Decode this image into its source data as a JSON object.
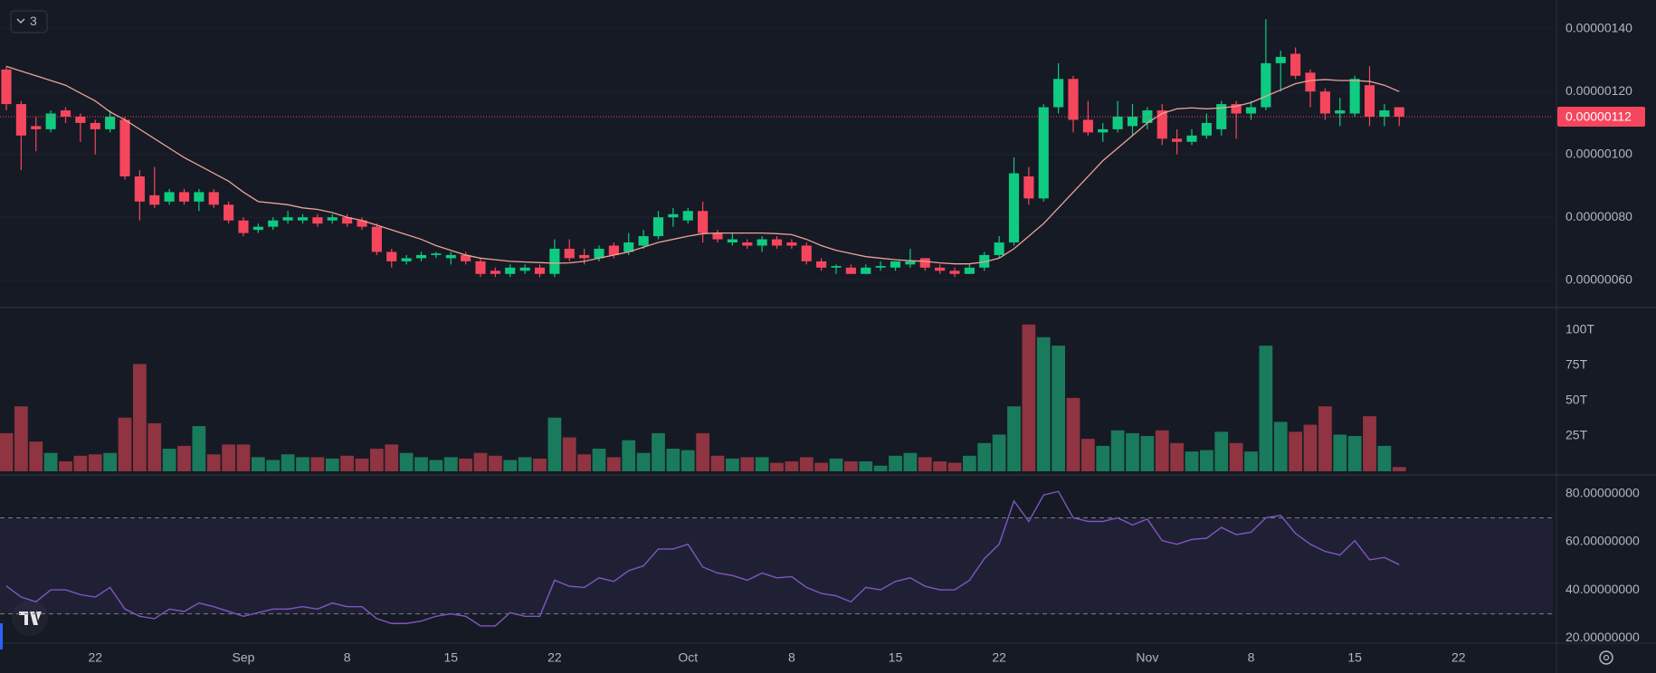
{
  "chart_data": [
    {
      "type": "candlestick",
      "collapsed_indicators": 3,
      "categories": [
        null,
        null,
        null,
        null,
        null,
        null,
        "22",
        null,
        null,
        null,
        null,
        null,
        null,
        null,
        null,
        null,
        "Sep",
        null,
        null,
        null,
        null,
        null,
        null,
        "8",
        null,
        null,
        null,
        null,
        null,
        null,
        "15",
        null,
        null,
        null,
        null,
        null,
        null,
        "22",
        null,
        null,
        null,
        null,
        null,
        null,
        null,
        null,
        "Oct",
        null,
        null,
        null,
        null,
        null,
        null,
        "8",
        null,
        null,
        null,
        null,
        null,
        null,
        "15",
        null,
        null,
        null,
        null,
        null,
        null,
        "22",
        null,
        null,
        null,
        null,
        null,
        null,
        null,
        null,
        null,
        "Nov",
        null,
        null,
        null,
        null,
        null,
        null,
        "8",
        null,
        null,
        null,
        null,
        null,
        null,
        "15",
        null,
        null,
        null,
        null,
        null,
        null,
        "22"
      ],
      "open": [
        1.27e-06,
        1.16e-06,
        1.09e-06,
        1.08e-06,
        1.14e-06,
        1.12e-06,
        1.1e-06,
        1.08e-06,
        1.11e-06,
        9.3e-07,
        8.7e-07,
        8.5e-07,
        8.8e-07,
        8.5e-07,
        8.8e-07,
        8.4e-07,
        7.9e-07,
        7.6e-07,
        7.7e-07,
        7.9e-07,
        7.9e-07,
        8e-07,
        7.9e-07,
        8e-07,
        7.9e-07,
        7.7e-07,
        6.9e-07,
        6.6e-07,
        6.7e-07,
        6.8e-07,
        6.7e-07,
        6.8e-07,
        6.6e-07,
        6.3e-07,
        6.2e-07,
        6.3e-07,
        6.4e-07,
        6.2e-07,
        7e-07,
        6.8e-07,
        6.7e-07,
        7.1e-07,
        6.9e-07,
        7.1e-07,
        7.4e-07,
        8e-07,
        7.9e-07,
        8.2e-07,
        7.5e-07,
        7.2e-07,
        7.2e-07,
        7.1e-07,
        7.3e-07,
        7.2e-07,
        7.1e-07,
        6.6e-07,
        6.4e-07,
        6.4e-07,
        6.2e-07,
        6.4e-07,
        6.4e-07,
        6.5e-07,
        6.7e-07,
        6.4e-07,
        6.3e-07,
        6.2e-07,
        6.4e-07,
        6.8e-07,
        7.2e-07,
        9.3e-07,
        8.6e-07,
        1.15e-06,
        1.24e-06,
        1.11e-06,
        1.07e-06,
        1.08e-06,
        1.09e-06,
        1.1e-06,
        1.14e-06,
        1.05e-06,
        1.04e-06,
        1.06e-06,
        1.08e-06,
        1.16e-06,
        1.13e-06,
        1.15e-06,
        1.29e-06,
        1.32e-06,
        1.26e-06,
        1.2e-06,
        1.13e-06,
        1.13e-06,
        1.22e-06,
        1.12e-06,
        1.15e-06,
        null,
        null,
        null,
        null
      ],
      "high": [
        1.28e-06,
        1.17e-06,
        1.12e-06,
        1.14e-06,
        1.15e-06,
        1.13e-06,
        1.11e-06,
        1.14e-06,
        1.12e-06,
        9.5e-07,
        9.6e-07,
        8.9e-07,
        8.9e-07,
        8.9e-07,
        8.9e-07,
        8.5e-07,
        8e-07,
        7.8e-07,
        8e-07,
        8.2e-07,
        8.1e-07,
        8.1e-07,
        8.1e-07,
        8.1e-07,
        8e-07,
        7.8e-07,
        7e-07,
        6.8e-07,
        6.9e-07,
        6.9e-07,
        6.9e-07,
        6.9e-07,
        6.7e-07,
        6.4e-07,
        6.5e-07,
        6.5e-07,
        6.5e-07,
        7.3e-07,
        7.3e-07,
        7e-07,
        7.1e-07,
        7.2e-07,
        7.5e-07,
        7.6e-07,
        8.2e-07,
        8.3e-07,
        8.3e-07,
        8.5e-07,
        7.6e-07,
        7.5e-07,
        7.3e-07,
        7.4e-07,
        7.4e-07,
        7.3e-07,
        7.2e-07,
        6.7e-07,
        6.5e-07,
        6.5e-07,
        6.5e-07,
        6.6e-07,
        6.6e-07,
        7e-07,
        6.7e-07,
        6.5e-07,
        6.4e-07,
        6.5e-07,
        6.9e-07,
        7.4e-07,
        9.9e-07,
        9.6e-07,
        1.16e-06,
        1.29e-06,
        1.25e-06,
        1.17e-06,
        1.1e-06,
        1.17e-06,
        1.16e-06,
        1.15e-06,
        1.16e-06,
        1.08e-06,
        1.08e-06,
        1.13e-06,
        1.17e-06,
        1.17e-06,
        1.17e-06,
        1.43e-06,
        1.33e-06,
        1.34e-06,
        1.27e-06,
        1.21e-06,
        1.18e-06,
        1.25e-06,
        1.28e-06,
        1.16e-06,
        1.15e-06,
        null,
        null,
        null,
        null
      ],
      "low": [
        1.14e-06,
        9.5e-07,
        1.01e-06,
        1.07e-06,
        1.1e-06,
        1.04e-06,
        1e-06,
        1.07e-06,
        9.2e-07,
        7.9e-07,
        8.3e-07,
        8.4e-07,
        8.4e-07,
        8.2e-07,
        8.3e-07,
        7.8e-07,
        7.4e-07,
        7.5e-07,
        7.6e-07,
        7.8e-07,
        7.8e-07,
        7.7e-07,
        7.8e-07,
        7.7e-07,
        7.6e-07,
        6.8e-07,
        6.4e-07,
        6.5e-07,
        6.6e-07,
        6.7e-07,
        6.5e-07,
        6.5e-07,
        6.1e-07,
        6.1e-07,
        6.1e-07,
        6.2e-07,
        6.1e-07,
        6.1e-07,
        6.6e-07,
        6.5e-07,
        6.6e-07,
        6.7e-07,
        6.8e-07,
        7e-07,
        7.3e-07,
        7.7e-07,
        7.8e-07,
        7.2e-07,
        7.2e-07,
        7.1e-07,
        7e-07,
        6.9e-07,
        7e-07,
        7e-07,
        6.5e-07,
        6.3e-07,
        6.2e-07,
        6.2e-07,
        6.2e-07,
        6.3e-07,
        6.3e-07,
        6.4e-07,
        6.3e-07,
        6.2e-07,
        6.1e-07,
        6.2e-07,
        6.3e-07,
        6.7e-07,
        7.1e-07,
        8.4e-07,
        8.5e-07,
        1.13e-06,
        1.07e-06,
        1.06e-06,
        1.04e-06,
        1.07e-06,
        1.06e-06,
        1.08e-06,
        1.03e-06,
        1e-06,
        1.03e-06,
        1.05e-06,
        1.06e-06,
        1.05e-06,
        1.11e-06,
        1.14e-06,
        1.2e-06,
        1.24e-06,
        1.15e-06,
        1.11e-06,
        1.09e-06,
        1.12e-06,
        1.09e-06,
        1.09e-06,
        1.09e-06,
        null,
        null,
        null,
        null
      ],
      "close": [
        1.16e-06,
        1.06e-06,
        1.08e-06,
        1.13e-06,
        1.12e-06,
        1.1e-06,
        1.08e-06,
        1.12e-06,
        9.3e-07,
        8.5e-07,
        8.4e-07,
        8.8e-07,
        8.5e-07,
        8.8e-07,
        8.4e-07,
        7.9e-07,
        7.5e-07,
        7.7e-07,
        7.9e-07,
        8e-07,
        8e-07,
        7.8e-07,
        8e-07,
        7.8e-07,
        7.7e-07,
        6.9e-07,
        6.6e-07,
        6.7e-07,
        6.8e-07,
        6.85e-07,
        6.8e-07,
        6.6e-07,
        6.2e-07,
        6.2e-07,
        6.4e-07,
        6.4e-07,
        6.2e-07,
        7e-07,
        6.7e-07,
        6.7e-07,
        7e-07,
        6.8e-07,
        7.2e-07,
        7.4e-07,
        8e-07,
        8.1e-07,
        8.2e-07,
        7.5e-07,
        7.3e-07,
        7.3e-07,
        7.1e-07,
        7.3e-07,
        7.1e-07,
        7.1e-07,
        6.6e-07,
        6.4e-07,
        6.45e-07,
        6.2e-07,
        6.4e-07,
        6.45e-07,
        6.6e-07,
        6.6e-07,
        6.4e-07,
        6.3e-07,
        6.2e-07,
        6.4e-07,
        6.8e-07,
        7.2e-07,
        9.4e-07,
        8.6e-07,
        1.15e-06,
        1.24e-06,
        1.11e-06,
        1.07e-06,
        1.08e-06,
        1.12e-06,
        1.12e-06,
        1.14e-06,
        1.05e-06,
        1.04e-06,
        1.06e-06,
        1.1e-06,
        1.16e-06,
        1.13e-06,
        1.15e-06,
        1.29e-06,
        1.31e-06,
        1.25e-06,
        1.2e-06,
        1.13e-06,
        1.14e-06,
        1.24e-06,
        1.12e-06,
        1.14e-06,
        1.12e-06,
        null,
        null,
        null,
        null
      ],
      "ma": [
        1.28e-06,
        1.265e-06,
        1.25e-06,
        1.235e-06,
        1.22e-06,
        1.195e-06,
        1.17e-06,
        1.135e-06,
        1.11e-06,
        1.08e-06,
        1.05e-06,
        1.02e-06,
        9.9e-07,
        9.65e-07,
        9.4e-07,
        9.15e-07,
        8.8e-07,
        8.5e-07,
        8.45e-07,
        8.4e-07,
        8.3e-07,
        8.25e-07,
        8.15e-07,
        8e-07,
        7.9e-07,
        7.75e-07,
        7.6e-07,
        7.45e-07,
        7.3e-07,
        7.1e-07,
        6.95e-07,
        6.8e-07,
        6.7e-07,
        6.65e-07,
        6.6e-07,
        6.58e-07,
        6.56e-07,
        6.54e-07,
        6.55e-07,
        6.6e-07,
        6.7e-07,
        6.8e-07,
        6.9e-07,
        7.05e-07,
        7.2e-07,
        7.3e-07,
        7.4e-07,
        7.48e-07,
        7.5e-07,
        7.5e-07,
        7.5e-07,
        7.5e-07,
        7.48e-07,
        7.45e-07,
        7.3e-07,
        7.1e-07,
        6.95e-07,
        6.85e-07,
        6.75e-07,
        6.7e-07,
        6.65e-07,
        6.62e-07,
        6.6e-07,
        6.55e-07,
        6.52e-07,
        6.52e-07,
        6.58e-07,
        6.7e-07,
        7e-07,
        7.4e-07,
        7.8e-07,
        8.3e-07,
        8.8e-07,
        9.3e-07,
        9.8e-07,
        1.02e-06,
        1.06e-06,
        1.1e-06,
        1.13e-06,
        1.145e-06,
        1.148e-06,
        1.145e-06,
        1.148e-06,
        1.153e-06,
        1.165e-06,
        1.185e-06,
        1.205e-06,
        1.225e-06,
        1.235e-06,
        1.238e-06,
        1.235e-06,
        1.235e-06,
        1.232e-06,
        1.22e-06,
        1.2e-06,
        null,
        null,
        null,
        null
      ],
      "up_color": "#0ecb81",
      "down_color": "#f6465d",
      "ma_color": "#e9a496",
      "ylim": [
        5.13e-07,
        1.491e-06
      ],
      "yticks": [
        {
          "value": 6e-07,
          "label": "0.00000060"
        },
        {
          "value": 8e-07,
          "label": "0.00000080"
        },
        {
          "value": 1e-06,
          "label": "0.00000100"
        },
        {
          "value": 1.2e-06,
          "label": "0.00000120"
        },
        {
          "value": 1.4e-06,
          "label": "0.00000140"
        }
      ],
      "grid": true,
      "last_price": {
        "value": 1.12e-06,
        "label": "0.00000112"
      }
    },
    {
      "type": "bar",
      "values": [
        27,
        46,
        21,
        13,
        7,
        11,
        12,
        13,
        38,
        76,
        34,
        16,
        18,
        32,
        12,
        19,
        19,
        10,
        8,
        12,
        10,
        10,
        9,
        11,
        9,
        16,
        19,
        13,
        10,
        8,
        10,
        9,
        13,
        11,
        8,
        10,
        9,
        38,
        24,
        12,
        16,
        10,
        22,
        13,
        27,
        16,
        15,
        27,
        11,
        9,
        10,
        10,
        6,
        7,
        10,
        6,
        9,
        7,
        7,
        4,
        11,
        13,
        10,
        7,
        6,
        11,
        20,
        26,
        46,
        104,
        95,
        89,
        52,
        23,
        18,
        29,
        27,
        25,
        29,
        20,
        14,
        15,
        28,
        20,
        14,
        89,
        35,
        28,
        33,
        46,
        26,
        25,
        39,
        18,
        3,
        null,
        null,
        null,
        null
      ],
      "up_color": "#1a7a5c",
      "down_color": "#8f3440",
      "ylim": [
        0,
        116
      ],
      "yticks": [
        {
          "value": 25,
          "label": "25T"
        },
        {
          "value": 50,
          "label": "50T"
        },
        {
          "value": 75,
          "label": "75T"
        },
        {
          "value": 100,
          "label": "100T"
        }
      ]
    },
    {
      "type": "line",
      "values": [
        41.6,
        37,
        35,
        40,
        40,
        38,
        37,
        41,
        32,
        29,
        28,
        32,
        31,
        34.5,
        33,
        31,
        29,
        30.5,
        32,
        32,
        33,
        32,
        34.5,
        33,
        33,
        28,
        26,
        26,
        27,
        29,
        30,
        29,
        25,
        25,
        30.5,
        29,
        29,
        44,
        41.5,
        41,
        45,
        43.5,
        48,
        50,
        57,
        57,
        59,
        49.5,
        47,
        46,
        44,
        47,
        45,
        45.5,
        41,
        38.5,
        37.5,
        35,
        41,
        40,
        43.5,
        45,
        41.5,
        40,
        40,
        44,
        53,
        59,
        77,
        68.5,
        79.5,
        81,
        70,
        68.5,
        68.5,
        70,
        67,
        69.5,
        60.5,
        59,
        61,
        61.5,
        66,
        63,
        64,
        70,
        71,
        63.5,
        59,
        56,
        54.5,
        60.5,
        52.5,
        53.5,
        50.5,
        null,
        null,
        null,
        null
      ],
      "color": "#7e57c2",
      "bands": [
        30,
        70
      ],
      "ylim": [
        17.8,
        87.5
      ],
      "yticks": [
        {
          "value": 20,
          "label": "20.00000000"
        },
        {
          "value": 40,
          "label": "40.00000000"
        },
        {
          "value": 60,
          "label": "60.00000000"
        },
        {
          "value": 80,
          "label": "80.00000000"
        }
      ]
    }
  ]
}
